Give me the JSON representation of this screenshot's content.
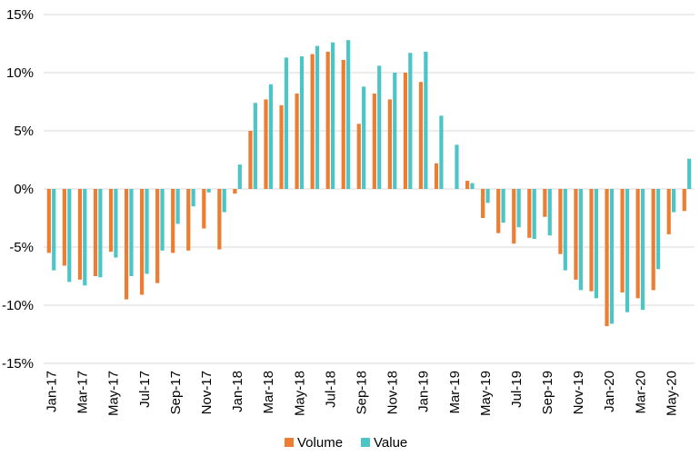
{
  "chart_data": {
    "type": "bar",
    "title": "",
    "xlabel": "",
    "ylabel": "",
    "ylim": [
      -15,
      15
    ],
    "yticks": [
      15,
      10,
      5,
      0,
      -5,
      -10,
      -15
    ],
    "ytick_labels": [
      "15%",
      "10%",
      "5%",
      "0%",
      "-5%",
      "-10%",
      "-15%"
    ],
    "grid": true,
    "legend_position": "bottom",
    "categories": [
      "Jan-17",
      "Feb-17",
      "Mar-17",
      "Apr-17",
      "May-17",
      "Jun-17",
      "Jul-17",
      "Aug-17",
      "Sep-17",
      "Oct-17",
      "Nov-17",
      "Dec-17",
      "Jan-18",
      "Feb-18",
      "Mar-18",
      "Apr-18",
      "May-18",
      "Jun-18",
      "Jul-18",
      "Aug-18",
      "Sep-18",
      "Oct-18",
      "Nov-18",
      "Dec-18",
      "Jan-19",
      "Feb-19",
      "Mar-19",
      "Apr-19",
      "May-19",
      "Jun-19",
      "Jul-19",
      "Aug-19",
      "Sep-19",
      "Oct-19",
      "Nov-19",
      "Dec-19",
      "Jan-20",
      "Feb-20",
      "Mar-20",
      "Apr-20",
      "May-20",
      "Jun-20"
    ],
    "visible_tick_labels": [
      "Jan-17",
      "Mar-17",
      "May-17",
      "Jul-17",
      "Sep-17",
      "Nov-17",
      "Jan-18",
      "Mar-18",
      "May-18",
      "Jul-18",
      "Sep-18",
      "Nov-18",
      "Jan-19",
      "Mar-19",
      "May-19",
      "Jul-19",
      "Sep-19",
      "Nov-19",
      "Jan-20",
      "Mar-20",
      "May-20"
    ],
    "series": [
      {
        "name": "Volume",
        "color": "#ED7D31",
        "values": [
          -5.5,
          -6.6,
          -7.8,
          -7.5,
          -5.4,
          -9.5,
          -9.1,
          -8.1,
          -5.5,
          -5.3,
          -3.4,
          -5.2,
          -0.4,
          5.0,
          7.7,
          7.2,
          8.2,
          11.6,
          11.8,
          11.1,
          5.6,
          8.2,
          7.7,
          10.0,
          9.2,
          2.2,
          0.0,
          0.7,
          -2.5,
          -3.8,
          -4.7,
          -4.2,
          -2.4,
          -5.6,
          -7.8,
          -8.8,
          -11.8,
          -8.9,
          -9.4,
          -8.7,
          -3.9,
          -1.9
        ]
      },
      {
        "name": "Value",
        "color": "#4BC5C5",
        "values": [
          -7.0,
          -8.0,
          -8.3,
          -7.6,
          -5.9,
          -7.5,
          -7.3,
          -5.3,
          -3.0,
          -1.5,
          -0.3,
          -2.0,
          2.1,
          7.4,
          9.0,
          11.3,
          11.4,
          12.3,
          12.6,
          12.8,
          8.8,
          10.6,
          10.0,
          11.7,
          11.8,
          6.3,
          3.8,
          0.5,
          -1.2,
          -2.9,
          -3.3,
          -4.3,
          -4.0,
          -7.0,
          -8.7,
          -9.4,
          -11.6,
          -10.6,
          -10.4,
          -6.9,
          -2.0,
          2.6
        ]
      }
    ]
  }
}
